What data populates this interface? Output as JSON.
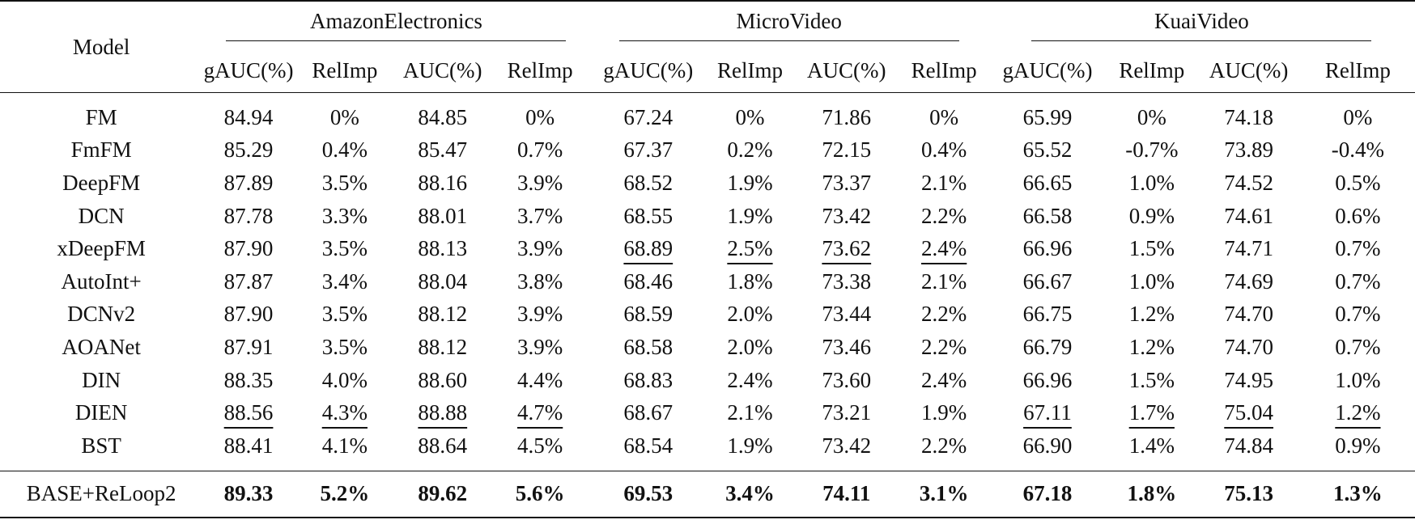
{
  "header": {
    "model_label": "Model",
    "groups": [
      "AmazonElectronics",
      "MicroVideo",
      "KuaiVideo"
    ],
    "subcolumns": [
      "gAUC(%)",
      "RelImp",
      "AUC(%)",
      "RelImp"
    ]
  },
  "rows": [
    {
      "model": "FM",
      "cells": [
        "84.94",
        "0%",
        "84.85",
        "0%",
        "67.24",
        "0%",
        "71.86",
        "0%",
        "65.99",
        "0%",
        "74.18",
        "0%"
      ],
      "underline": []
    },
    {
      "model": "FmFM",
      "cells": [
        "85.29",
        "0.4%",
        "85.47",
        "0.7%",
        "67.37",
        "0.2%",
        "72.15",
        "0.4%",
        "65.52",
        "-0.7%",
        "73.89",
        "-0.4%"
      ],
      "underline": []
    },
    {
      "model": "DeepFM",
      "cells": [
        "87.89",
        "3.5%",
        "88.16",
        "3.9%",
        "68.52",
        "1.9%",
        "73.37",
        "2.1%",
        "66.65",
        "1.0%",
        "74.52",
        "0.5%"
      ],
      "underline": []
    },
    {
      "model": "DCN",
      "cells": [
        "87.78",
        "3.3%",
        "88.01",
        "3.7%",
        "68.55",
        "1.9%",
        "73.42",
        "2.2%",
        "66.58",
        "0.9%",
        "74.61",
        "0.6%"
      ],
      "underline": []
    },
    {
      "model": "xDeepFM",
      "cells": [
        "87.90",
        "3.5%",
        "88.13",
        "3.9%",
        "68.89",
        "2.5%",
        "73.62",
        "2.4%",
        "66.96",
        "1.5%",
        "74.71",
        "0.7%"
      ],
      "underline": [
        4,
        5,
        6,
        7
      ]
    },
    {
      "model": "AutoInt+",
      "cells": [
        "87.87",
        "3.4%",
        "88.04",
        "3.8%",
        "68.46",
        "1.8%",
        "73.38",
        "2.1%",
        "66.67",
        "1.0%",
        "74.69",
        "0.7%"
      ],
      "underline": []
    },
    {
      "model": "DCNv2",
      "cells": [
        "87.90",
        "3.5%",
        "88.12",
        "3.9%",
        "68.59",
        "2.0%",
        "73.44",
        "2.2%",
        "66.75",
        "1.2%",
        "74.70",
        "0.7%"
      ],
      "underline": []
    },
    {
      "model": "AOANet",
      "cells": [
        "87.91",
        "3.5%",
        "88.12",
        "3.9%",
        "68.58",
        "2.0%",
        "73.46",
        "2.2%",
        "66.79",
        "1.2%",
        "74.70",
        "0.7%"
      ],
      "underline": []
    },
    {
      "model": "DIN",
      "cells": [
        "88.35",
        "4.0%",
        "88.60",
        "4.4%",
        "68.83",
        "2.4%",
        "73.60",
        "2.4%",
        "66.96",
        "1.5%",
        "74.95",
        "1.0%"
      ],
      "underline": []
    },
    {
      "model": "DIEN",
      "cells": [
        "88.56",
        "4.3%",
        "88.88",
        "4.7%",
        "68.67",
        "2.1%",
        "73.21",
        "1.9%",
        "67.11",
        "1.7%",
        "75.04",
        "1.2%"
      ],
      "underline": [
        0,
        1,
        2,
        3,
        8,
        9,
        10,
        11
      ]
    },
    {
      "model": "BST",
      "cells": [
        "88.41",
        "4.1%",
        "88.64",
        "4.5%",
        "68.54",
        "1.9%",
        "73.42",
        "2.2%",
        "66.90",
        "1.4%",
        "74.84",
        "0.9%"
      ],
      "underline": []
    }
  ],
  "final": {
    "model": "BASE+ReLoop2",
    "cells": [
      "89.33",
      "5.2%",
      "89.62",
      "5.6%",
      "69.53",
      "3.4%",
      "74.11",
      "3.1%",
      "67.18",
      "1.8%",
      "75.13",
      "1.3%"
    ]
  }
}
